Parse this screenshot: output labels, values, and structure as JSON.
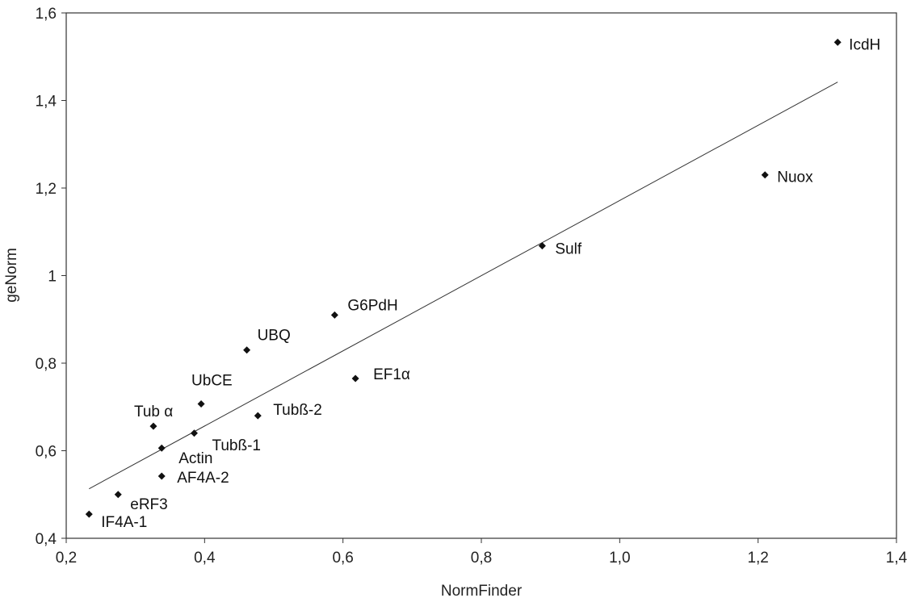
{
  "chart_data": {
    "type": "scatter",
    "xlabel": "NormFinder",
    "ylabel": "geNorm",
    "xlim": [
      0.2,
      1.4
    ],
    "ylim": [
      0.4,
      1.6
    ],
    "x_ticks": [
      "0,2",
      "0,4",
      "0,6",
      "0,8",
      "1,0",
      "1,2",
      "1,4"
    ],
    "x_tick_values": [
      0.2,
      0.4,
      0.6,
      0.8,
      1.0,
      1.2,
      1.4
    ],
    "y_ticks": [
      "0,4",
      "0,6",
      "0,8",
      "1",
      "1,2",
      "1,4",
      "1,6"
    ],
    "y_tick_values": [
      0.4,
      0.6,
      0.8,
      1.0,
      1.2,
      1.4,
      1.6
    ],
    "grid": false,
    "points": [
      {
        "label": "IcdH",
        "x": 1.315,
        "y": 1.533
      },
      {
        "label": "Nuox",
        "x": 1.21,
        "y": 1.23
      },
      {
        "label": "Sulf",
        "x": 0.888,
        "y": 1.068
      },
      {
        "label": "G6PdH",
        "x": 0.588,
        "y": 0.91
      },
      {
        "label": "UBQ",
        "x": 0.461,
        "y": 0.83
      },
      {
        "label": "EF1α",
        "x": 0.618,
        "y": 0.765
      },
      {
        "label": "UbCE",
        "x": 0.395,
        "y": 0.707
      },
      {
        "label": "Tubß-2",
        "x": 0.477,
        "y": 0.68
      },
      {
        "label": "Tub α",
        "x": 0.326,
        "y": 0.656
      },
      {
        "label": "Tubß-1",
        "x": 0.385,
        "y": 0.64
      },
      {
        "label": "Actin",
        "x": 0.338,
        "y": 0.606
      },
      {
        "label": "AF4A-2",
        "x": 0.338,
        "y": 0.542
      },
      {
        "label": "eRF3",
        "x": 0.275,
        "y": 0.5
      },
      {
        "label": "IF4A-1",
        "x": 0.233,
        "y": 0.455
      }
    ],
    "trendline": {
      "x": [
        0.233,
        1.315
      ],
      "y": [
        0.513,
        1.442
      ]
    }
  }
}
